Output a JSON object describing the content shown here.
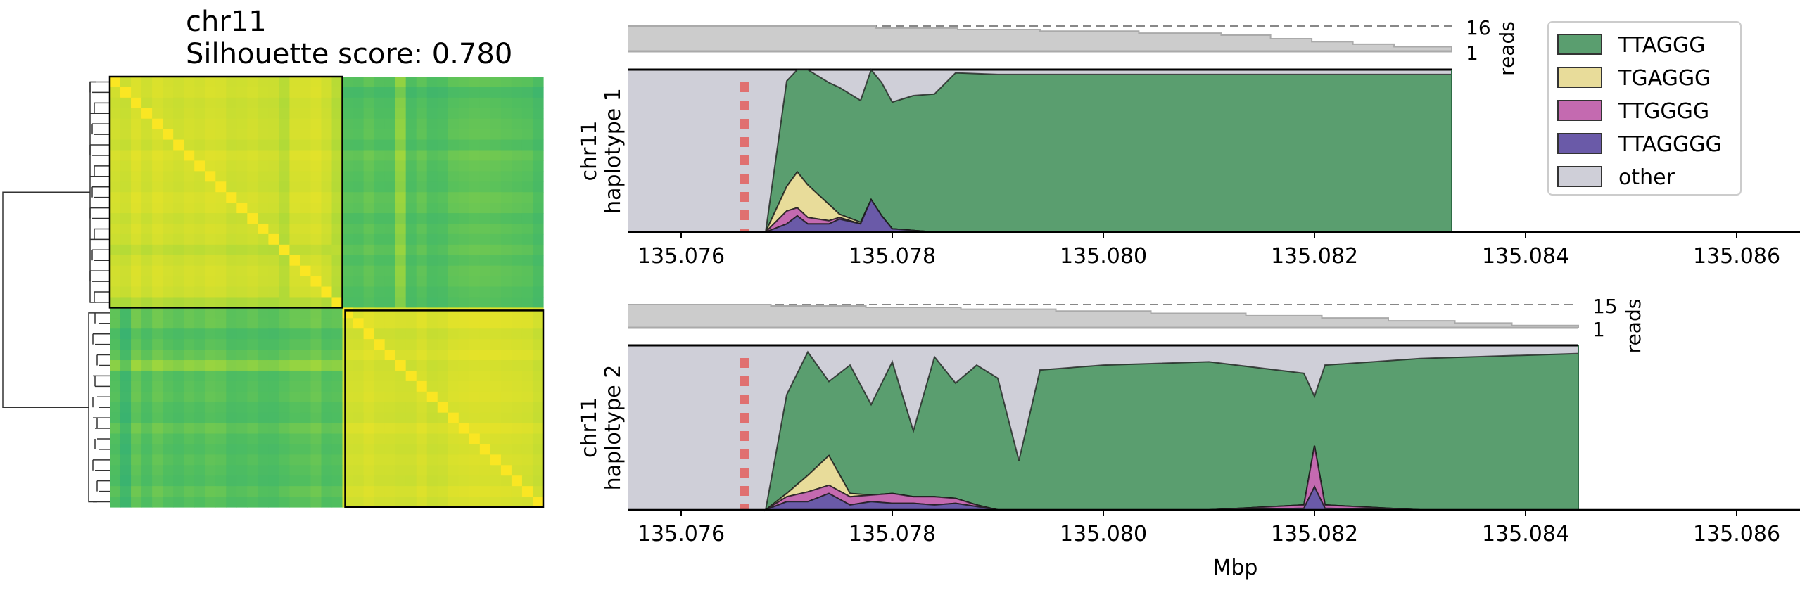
{
  "heatmap": {
    "title_line1": "chr11",
    "title_line2": "Silhouette score: 0.780"
  },
  "legend": {
    "items": [
      {
        "label": "TTAGGG",
        "color": "#5a9e6f"
      },
      {
        "label": "TGAGGG",
        "color": "#e8dc9a"
      },
      {
        "label": "TTGGGG",
        "color": "#c46ab0"
      },
      {
        "label": "TTAGGGG",
        "color": "#6a5aa8"
      },
      {
        "label": "other",
        "color": "#cfcfd8"
      }
    ]
  },
  "chart_data": [
    {
      "type": "heatmap",
      "title": "chr11\nSilhouette score: 0.780",
      "clusters": 2,
      "cluster_sizes": [
        22,
        19
      ],
      "description_of_values": "pairwise similarity, yellow = high, green = lower",
      "colormap": "viridis (upper range)"
    },
    {
      "type": "area",
      "panel": "haplotype 1",
      "ylabel": "chr11\nhaplotype 1",
      "reads_label": "reads",
      "reads_max": "16",
      "reads_min": "1",
      "xlim": [
        135.0755,
        135.0866
      ],
      "x_ticks": [
        "135.076",
        "135.078",
        "135.080",
        "135.082",
        "135.084",
        "135.086"
      ],
      "marker_x": 135.0766,
      "data_end_x": 135.0833,
      "x": [
        135.0768,
        135.077,
        135.0771,
        135.0772,
        135.0774,
        135.0775,
        135.0777,
        135.0778,
        135.0779,
        135.078,
        135.0782,
        135.0784,
        135.0786,
        135.079,
        135.08,
        135.081,
        135.082,
        135.0833
      ],
      "series": [
        {
          "name": "TTAGGG",
          "values": [
            0,
            0.65,
            0.7,
            0.72,
            0.75,
            0.78,
            0.75,
            0.8,
            0.82,
            0.78,
            0.83,
            0.85,
            0.98,
            0.97,
            0.97,
            0.97,
            0.97,
            0.97
          ]
        },
        {
          "name": "TGAGGG",
          "values": [
            0,
            0.15,
            0.22,
            0.2,
            0.1,
            0.02,
            0.01,
            0,
            0,
            0,
            0,
            0,
            0,
            0,
            0,
            0,
            0,
            0
          ]
        },
        {
          "name": "TTGGGG",
          "values": [
            0,
            0.08,
            0.05,
            0.04,
            0.02,
            0.01,
            0,
            0,
            0,
            0,
            0,
            0,
            0,
            0,
            0,
            0,
            0,
            0
          ]
        },
        {
          "name": "TTAGGGG",
          "values": [
            0,
            0.05,
            0.1,
            0.05,
            0.05,
            0.08,
            0.05,
            0.2,
            0.1,
            0.02,
            0.01,
            0,
            0,
            0,
            0,
            0,
            0,
            0
          ]
        }
      ]
    },
    {
      "type": "area",
      "panel": "haplotype 2",
      "ylabel": "chr11\nhaplotype 2",
      "reads_label": "reads",
      "reads_max": "15",
      "reads_min": "1",
      "xlabel": "Mbp",
      "xlim": [
        135.0755,
        135.0866
      ],
      "x_ticks": [
        "135.076",
        "135.078",
        "135.080",
        "135.082",
        "135.084",
        "135.086"
      ],
      "marker_x": 135.0766,
      "data_end_x": 135.0845,
      "x": [
        135.0768,
        135.077,
        135.0772,
        135.0774,
        135.0776,
        135.0778,
        135.078,
        135.0782,
        135.0784,
        135.0786,
        135.0788,
        135.079,
        135.0792,
        135.0794,
        135.08,
        135.081,
        135.0819,
        135.082,
        135.0821,
        135.083,
        135.0845
      ],
      "series": [
        {
          "name": "TTAGGG",
          "values": [
            0,
            0.6,
            0.75,
            0.45,
            0.78,
            0.55,
            0.8,
            0.4,
            0.85,
            0.7,
            0.85,
            0.8,
            0.3,
            0.85,
            0.88,
            0.9,
            0.8,
            0.3,
            0.85,
            0.92,
            0.95
          ]
        },
        {
          "name": "TGAGGG",
          "values": [
            0,
            0.02,
            0.1,
            0.18,
            0.02,
            0,
            0,
            0,
            0,
            0,
            0,
            0,
            0,
            0,
            0,
            0,
            0,
            0,
            0,
            0,
            0
          ]
        },
        {
          "name": "TTGGGG",
          "values": [
            0,
            0.03,
            0.06,
            0.05,
            0.05,
            0.04,
            0.06,
            0.04,
            0.05,
            0.03,
            0.01,
            0,
            0,
            0,
            0,
            0,
            0.02,
            0.25,
            0.02,
            0,
            0
          ]
        },
        {
          "name": "TTAGGGG",
          "values": [
            0,
            0.05,
            0.05,
            0.1,
            0.03,
            0.05,
            0.04,
            0.04,
            0.03,
            0.04,
            0.02,
            0,
            0,
            0,
            0,
            0,
            0.01,
            0.14,
            0.01,
            0,
            0
          ]
        }
      ]
    }
  ]
}
